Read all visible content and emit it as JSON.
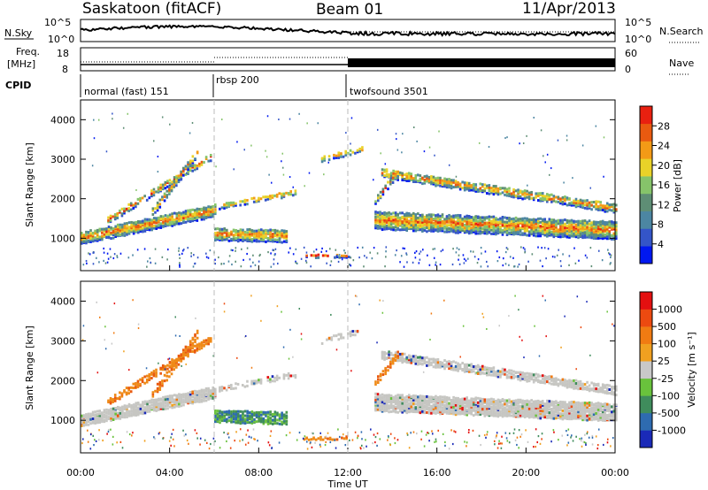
{
  "header": {
    "station": "Saskatoon (fitACF)",
    "beam": "Beam 01",
    "date": "11/Apr/2013"
  },
  "panels": {
    "nsky": {
      "left_label": "N.Sky",
      "right_label": "N.Search",
      "ticks": [
        "10^5",
        "10^0"
      ]
    },
    "freq": {
      "left_label_1": "Freq.",
      "left_label_2": "[MHz]",
      "left_ticks": [
        "18",
        "8"
      ],
      "right_ticks": [
        "60",
        "0"
      ],
      "right_label": "Nave"
    },
    "cpid": {
      "label": "CPID",
      "modes": [
        {
          "name": "normal (fast) 151",
          "start_hour": 0
        },
        {
          "name": "rbsp 200",
          "start_hour": 6
        },
        {
          "name": "twofsound 3501",
          "start_hour": 12
        }
      ]
    }
  },
  "chart_data": [
    {
      "type": "heatmap",
      "name": "power",
      "ylabel": "Slant Range [km]",
      "ylim": [
        180,
        4500
      ],
      "yticks": [
        1000,
        2000,
        3000,
        4000
      ],
      "xlim": [
        0,
        24
      ],
      "colorbar": {
        "label": "Power [dB]",
        "range": [
          0,
          32
        ],
        "ticks": [
          "4",
          "8",
          "12",
          "16",
          "20",
          "24",
          "28"
        ],
        "colors": [
          "#0018f0",
          "#3455c8",
          "#4c86a2",
          "#5e8e75",
          "#86c46a",
          "#e9d228",
          "#f39a16",
          "#e95a10",
          "#e82010"
        ]
      }
    },
    {
      "type": "heatmap",
      "name": "velocity",
      "ylabel": "Slant Range [km]",
      "ylim": [
        180,
        4500
      ],
      "yticks": [
        1000,
        2000,
        3000,
        4000
      ],
      "xlim": [
        0,
        24
      ],
      "xlabel": "Time UT",
      "xticks": [
        "00:00",
        "04:00",
        "08:00",
        "12:00",
        "16:00",
        "20:00",
        "00:00"
      ],
      "colorbar": {
        "label": "Velocity [m s⁻¹]",
        "ticks": [
          "1000",
          "500",
          "100",
          "25",
          "-25",
          "-100",
          "-500",
          "-1000"
        ],
        "colors": [
          "#1a2ab8",
          "#2e6bb0",
          "#3f8c5c",
          "#69c23c",
          "#c8c8c8",
          "#f0a020",
          "#f07b12",
          "#ec4a10",
          "#e41010"
        ]
      }
    }
  ]
}
